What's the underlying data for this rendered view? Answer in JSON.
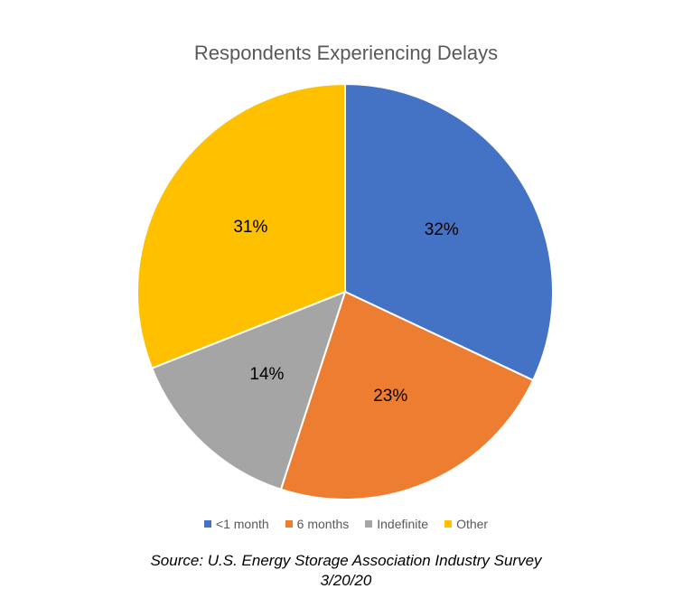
{
  "chart_data": {
    "type": "pie",
    "title": "Respondents Experiencing Delays",
    "categories": [
      "<1 month",
      "6 months",
      "Indefinite",
      "Other"
    ],
    "values": [
      32,
      23,
      14,
      31
    ],
    "data_labels": [
      "32%",
      "23%",
      "14%",
      "31%"
    ],
    "colors": [
      "#4472C4",
      "#ED7D31",
      "#A5A5A5",
      "#FFC000"
    ],
    "legend_position": "bottom"
  },
  "source": {
    "line1": "Source: U.S. Energy Storage Association Industry Survey",
    "line2": "3/20/20"
  }
}
